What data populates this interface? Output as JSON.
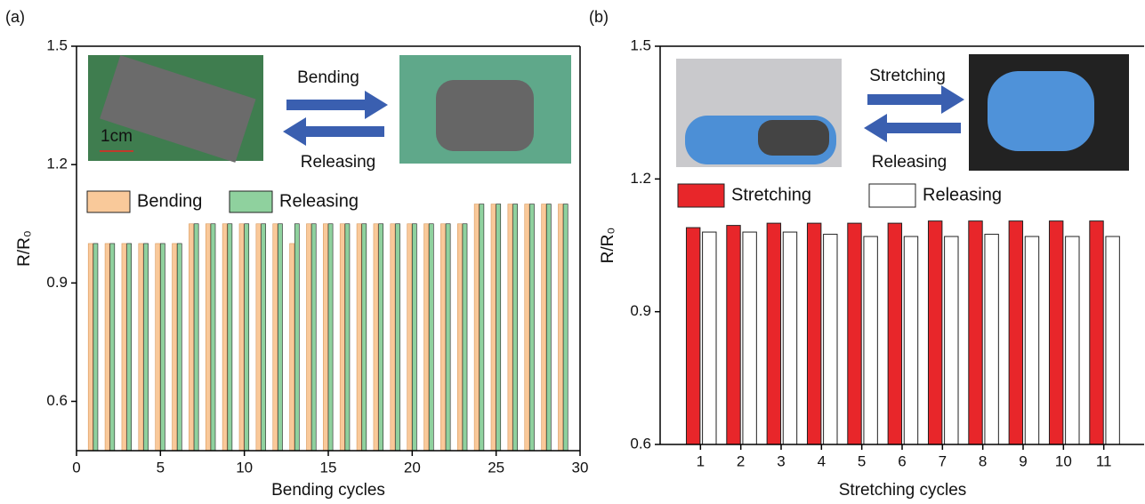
{
  "chart_data": [
    {
      "panel": "(a)",
      "type": "bar",
      "xlabel": "Bending cycles",
      "ylabel": "R/R₀",
      "x": [
        1,
        2,
        3,
        4,
        5,
        6,
        7,
        8,
        9,
        10,
        11,
        12,
        13,
        14,
        15,
        16,
        17,
        18,
        19,
        20,
        21,
        22,
        23,
        24,
        25,
        26,
        27,
        28,
        29
      ],
      "series": [
        {
          "name": "Bending",
          "color": "#f9c99a",
          "values": [
            1.0,
            1.0,
            1.0,
            1.0,
            1.0,
            1.0,
            1.05,
            1.05,
            1.05,
            1.05,
            1.05,
            1.05,
            1.0,
            1.05,
            1.05,
            1.05,
            1.05,
            1.05,
            1.05,
            1.05,
            1.05,
            1.05,
            1.05,
            1.1,
            1.1,
            1.1,
            1.1,
            1.1,
            1.1
          ]
        },
        {
          "name": "Releasing",
          "color": "#8fd19e",
          "values": [
            1.0,
            1.0,
            1.0,
            1.0,
            1.0,
            1.0,
            1.05,
            1.05,
            1.05,
            1.05,
            1.05,
            1.05,
            1.05,
            1.05,
            1.05,
            1.05,
            1.05,
            1.05,
            1.05,
            1.05,
            1.05,
            1.05,
            1.05,
            1.1,
            1.1,
            1.1,
            1.1,
            1.1,
            1.1
          ]
        }
      ],
      "xlim": [
        0,
        30
      ],
      "xticks": [
        0,
        5,
        10,
        15,
        20,
        25,
        30
      ],
      "ylim": [
        0.475,
        1.5
      ],
      "yticks": [
        0.6,
        0.9,
        1.2,
        1.5
      ],
      "annotations": [
        "Bending",
        "Releasing",
        "1cm"
      ]
    },
    {
      "panel": "(b)",
      "type": "bar",
      "xlabel": "Stretching cycles",
      "ylabel": "R/R₀",
      "x": [
        1,
        2,
        3,
        4,
        5,
        6,
        7,
        8,
        9,
        10,
        11
      ],
      "series": [
        {
          "name": "Stretching",
          "color": "#e8262a",
          "values": [
            1.09,
            1.095,
            1.1,
            1.1,
            1.1,
            1.1,
            1.105,
            1.105,
            1.105,
            1.105,
            1.105
          ]
        },
        {
          "name": "Releasing",
          "color": "#ffffff",
          "values": [
            1.08,
            1.08,
            1.08,
            1.075,
            1.07,
            1.07,
            1.07,
            1.075,
            1.07,
            1.07,
            1.07
          ]
        }
      ],
      "xlim": [
        0,
        12
      ],
      "xticks": [
        1,
        2,
        3,
        4,
        5,
        6,
        7,
        8,
        9,
        10,
        11
      ],
      "ylim": [
        0.6,
        1.5
      ],
      "yticks": [
        0.6,
        0.9,
        1.2,
        1.5
      ],
      "annotations": [
        "Stretching",
        "Releasing"
      ]
    }
  ]
}
